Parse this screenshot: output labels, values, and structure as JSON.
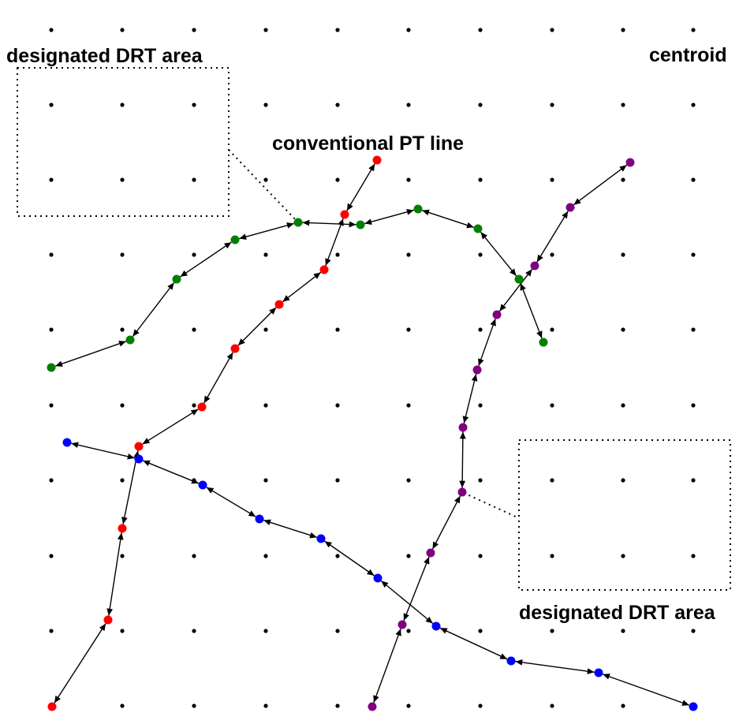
{
  "labels": {
    "drt_area_top_left": "designated DRT area",
    "centroid": "centroid",
    "conventional_pt_line": "conventional PT line",
    "drt_area_bottom_right": "designated DRT area"
  },
  "colors": {
    "red": "#ff0000",
    "green": "#008000",
    "blue": "#0000ff",
    "purple": "#800080",
    "edge": "#000000",
    "centroid": "#000000",
    "drt_border": "#000000"
  },
  "lines": [
    {
      "name": "red",
      "color_key": "red",
      "directed": "both"
    },
    {
      "name": "green",
      "color_key": "green",
      "directed": "both"
    },
    {
      "name": "blue",
      "color_key": "blue",
      "directed": "both"
    },
    {
      "name": "purple",
      "color_key": "purple",
      "directed": "both"
    }
  ]
}
